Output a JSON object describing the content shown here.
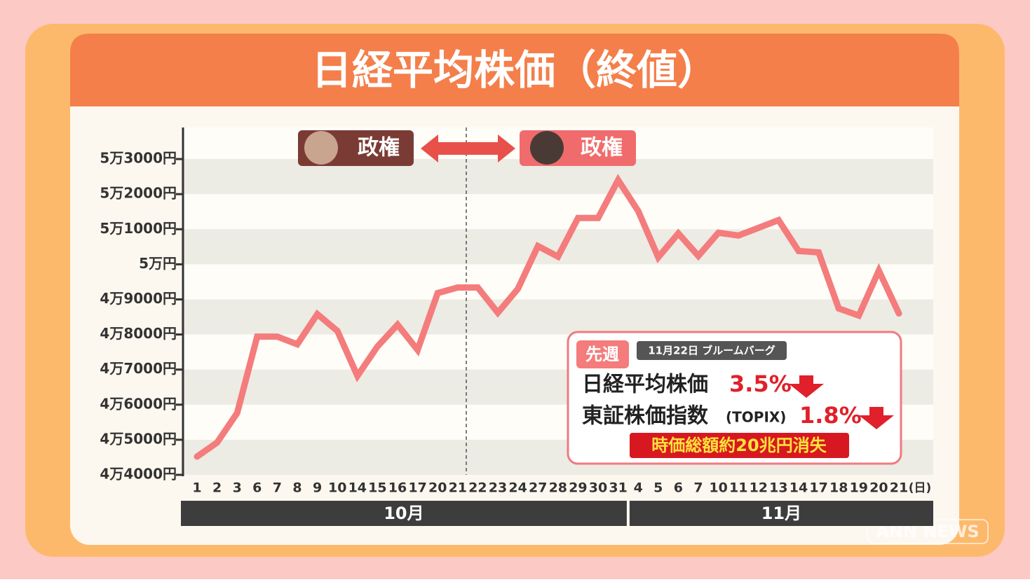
{
  "chart_data": {
    "type": "line",
    "title": "日経平均株価（終値）",
    "groups": [
      {
        "label": "10月",
        "categories": [
          "1",
          "2",
          "3",
          "6",
          "7",
          "8",
          "9",
          "10",
          "14",
          "15",
          "16",
          "17",
          "20",
          "21",
          "22",
          "23",
          "24",
          "27",
          "28",
          "29",
          "30",
          "31"
        ]
      },
      {
        "label": "11月",
        "categories": [
          "4",
          "5",
          "6",
          "7",
          "10",
          "11",
          "12",
          "13",
          "14",
          "17",
          "18",
          "19",
          "20",
          "21"
        ]
      }
    ],
    "x_unit": "(日)",
    "series": [
      {
        "color": "#f47c7c",
        "values": [
          44520,
          44920,
          45760,
          47940,
          47940,
          47720,
          48580,
          48100,
          46820,
          47660,
          48280,
          47560,
          49180,
          49340,
          49340,
          48620,
          49300,
          50520,
          50220,
          51320,
          51320,
          52400,
          51520,
          50200,
          50880,
          50240,
          50900,
          50820,
          51040,
          51260,
          50380,
          50340,
          48740,
          48540,
          49820,
          48600
        ]
      }
    ],
    "ylim": [
      44000,
      53900
    ],
    "yticks": [
      {
        "value": 44000,
        "label": "4万4000円"
      },
      {
        "value": 45000,
        "label": "4万5000円"
      },
      {
        "value": 46000,
        "label": "4万6000円"
      },
      {
        "value": 47000,
        "label": "4万7000円"
      },
      {
        "value": 48000,
        "label": "4万8000円"
      },
      {
        "value": 49000,
        "label": "4万9000円"
      },
      {
        "value": 50000,
        "label": "5万円"
      },
      {
        "value": 51000,
        "label": "5万1000円"
      },
      {
        "value": 52000,
        "label": "5万2000円"
      },
      {
        "value": 53000,
        "label": "5万3000円"
      }
    ],
    "regimes": [
      "政権",
      "政権"
    ],
    "info": {
      "tag": "先週",
      "source": "11月22日 ブルームバーグ",
      "rows": [
        {
          "name": "日経平均株価",
          "note": "",
          "change": "3.5%"
        },
        {
          "name": "東証株価指数",
          "note": "(TOPIX)",
          "change": "1.8%"
        }
      ],
      "banner": "時価総額約20兆円消失"
    },
    "logo": "ANN NEWS"
  }
}
